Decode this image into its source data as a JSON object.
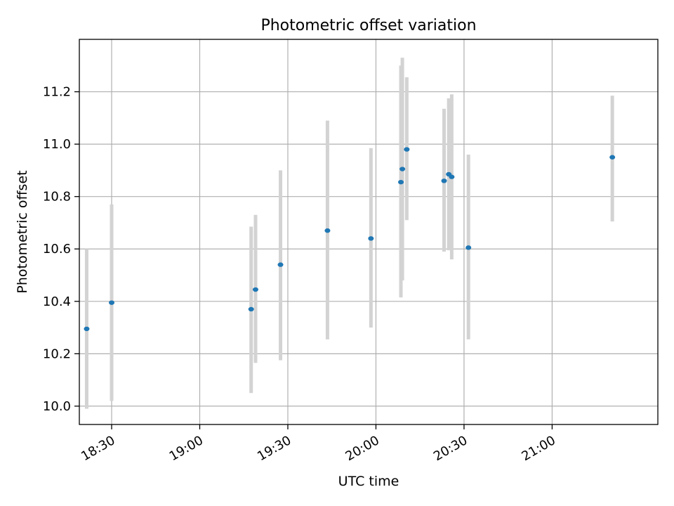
{
  "chart_data": {
    "type": "scatter",
    "title": "Photometric offset variation",
    "xlabel": "UTC time",
    "ylabel": "Photometric offset",
    "x_unit": "UTC time (HH:MM)",
    "xlim": [
      "18:19",
      "21:36"
    ],
    "ylim": [
      9.93,
      11.4
    ],
    "x_ticks": [
      "18:30",
      "19:00",
      "19:30",
      "20:00",
      "20:30",
      "21:00"
    ],
    "y_ticks": [
      "10.0",
      "10.2",
      "10.4",
      "10.6",
      "10.8",
      "11.0",
      "11.2"
    ],
    "grid": true,
    "marker_color": "#1f77b4",
    "errorbar_color": "#d3d3d3",
    "points": [
      {
        "time": "18:21.5",
        "y": 10.295,
        "y_low": 9.99,
        "y_high": 10.6
      },
      {
        "time": "18:30.0",
        "y": 10.395,
        "y_low": 10.02,
        "y_high": 10.77
      },
      {
        "time": "19:17.5",
        "y": 10.37,
        "y_low": 10.05,
        "y_high": 10.685
      },
      {
        "time": "19:19.0",
        "y": 10.445,
        "y_low": 10.165,
        "y_high": 10.73
      },
      {
        "time": "19:27.5",
        "y": 10.54,
        "y_low": 10.175,
        "y_high": 10.9
      },
      {
        "time": "19:43.5",
        "y": 10.67,
        "y_low": 10.255,
        "y_high": 11.09
      },
      {
        "time": "19:58.3",
        "y": 10.64,
        "y_low": 10.3,
        "y_high": 10.985
      },
      {
        "time": "20:08.5",
        "y": 10.855,
        "y_low": 10.415,
        "y_high": 11.3
      },
      {
        "time": "20:09.0",
        "y": 10.905,
        "y_low": 10.48,
        "y_high": 11.33
      },
      {
        "time": "20:10.5",
        "y": 10.98,
        "y_low": 10.71,
        "y_high": 11.255
      },
      {
        "time": "20:23.2",
        "y": 10.86,
        "y_low": 10.59,
        "y_high": 11.135
      },
      {
        "time": "20:24.8",
        "y": 10.885,
        "y_low": 10.595,
        "y_high": 11.175
      },
      {
        "time": "20:25.8",
        "y": 10.875,
        "y_low": 10.56,
        "y_high": 11.19
      },
      {
        "time": "20:31.5",
        "y": 10.605,
        "y_low": 10.255,
        "y_high": 10.96
      },
      {
        "time": "21:20.5",
        "y": 10.95,
        "y_low": 10.705,
        "y_high": 11.185
      }
    ]
  }
}
